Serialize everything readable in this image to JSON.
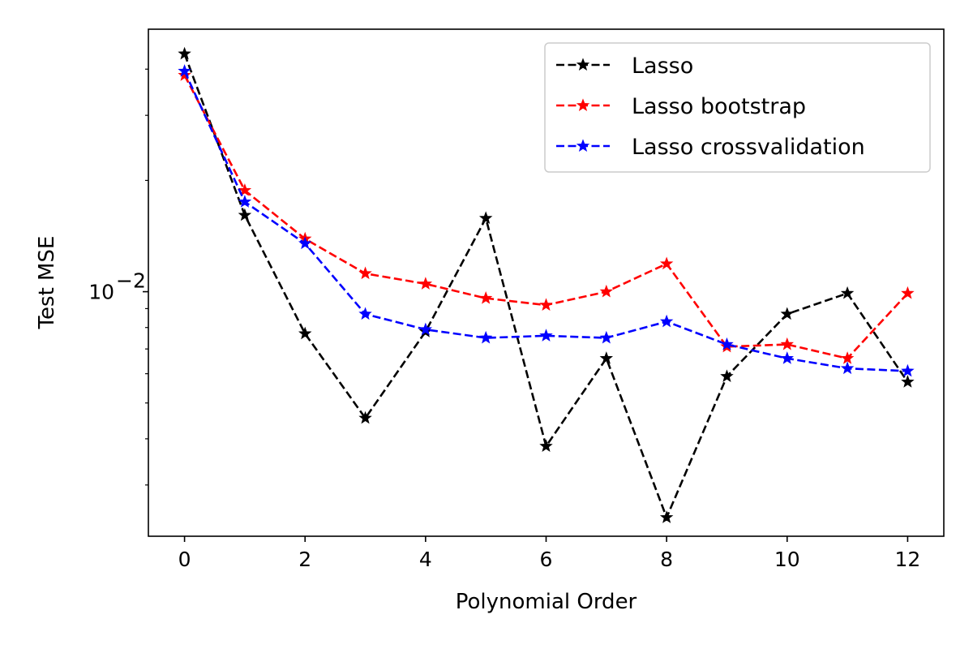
{
  "chart_data": {
    "type": "line",
    "xlabel": "Polynomial Order",
    "ylabel": "Test MSE",
    "yscale": "log",
    "xlim": [
      -0.6,
      12.6
    ],
    "ylim": [
      0.00218,
      0.0513
    ],
    "xticks": [
      0,
      2,
      4,
      6,
      8,
      10,
      12
    ],
    "yticks_major": [
      {
        "value": 0.01,
        "base": "10",
        "exponent": "−2"
      }
    ],
    "yticks_minor": [
      0.003,
      0.004,
      0.005,
      0.006,
      0.007,
      0.008,
      0.009,
      0.02,
      0.03,
      0.04
    ],
    "grid": false,
    "legend_position": "top-right",
    "x": [
      0,
      1,
      2,
      3,
      4,
      5,
      6,
      7,
      8,
      9,
      10,
      11,
      12
    ],
    "series": [
      {
        "name": "Lasso",
        "color": "#000000",
        "marker": "star",
        "linestyle": "dashed",
        "values": [
          0.044,
          0.0161,
          0.0077,
          0.00455,
          0.0078,
          0.0158,
          0.00382,
          0.0066,
          0.00245,
          0.0059,
          0.0087,
          0.0099,
          0.0057
        ]
      },
      {
        "name": "Lasso bootstrap",
        "color": "#ff0000",
        "marker": "star",
        "linestyle": "dashed",
        "values": [
          0.0385,
          0.0188,
          0.0139,
          0.0112,
          0.0105,
          0.0096,
          0.0092,
          0.01,
          0.0119,
          0.0071,
          0.0072,
          0.0066,
          0.0099
        ]
      },
      {
        "name": "Lasso crossvalidation",
        "color": "#0000ff",
        "marker": "star",
        "linestyle": "dashed",
        "values": [
          0.0395,
          0.0175,
          0.0135,
          0.0087,
          0.0079,
          0.0075,
          0.0076,
          0.0075,
          0.0083,
          0.0072,
          0.0066,
          0.0062,
          0.0061
        ]
      }
    ]
  }
}
